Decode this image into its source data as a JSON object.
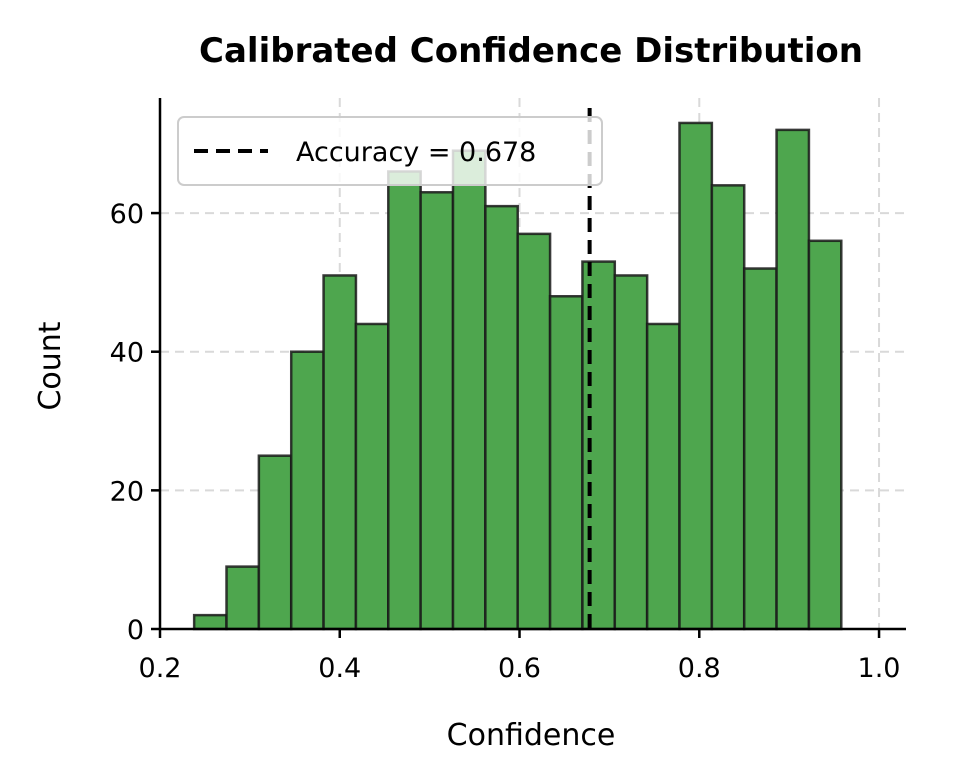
{
  "chart_data": {
    "type": "bar",
    "title": "Calibrated Confidence Distribution",
    "xlabel": "Confidence",
    "ylabel": "Count",
    "xlim": [
      0.2,
      1.03
    ],
    "ylim": [
      0,
      76.6
    ],
    "xticks": [
      "0.2",
      "0.4",
      "0.6",
      "0.8",
      "1.0"
    ],
    "yticks": [
      "0",
      "20",
      "40",
      "60"
    ],
    "grid": true,
    "legend_position": "top-left",
    "bins": [
      [
        0.238,
        0.274
      ],
      [
        0.274,
        0.31
      ],
      [
        0.31,
        0.346
      ],
      [
        0.346,
        0.382
      ],
      [
        0.382,
        0.418
      ],
      [
        0.418,
        0.454
      ],
      [
        0.454,
        0.49
      ],
      [
        0.49,
        0.526
      ],
      [
        0.526,
        0.562
      ],
      [
        0.562,
        0.598
      ],
      [
        0.598,
        0.634
      ],
      [
        0.634,
        0.67
      ],
      [
        0.67,
        0.706
      ],
      [
        0.706,
        0.742
      ],
      [
        0.742,
        0.778
      ],
      [
        0.778,
        0.814
      ],
      [
        0.814,
        0.85
      ],
      [
        0.85,
        0.886
      ],
      [
        0.886,
        0.922
      ],
      [
        0.922,
        0.958
      ],
      [
        0.958,
        0.994
      ]
    ],
    "values": [
      2,
      9,
      25,
      40,
      51,
      44,
      66,
      63,
      69,
      61,
      57,
      48,
      53,
      51,
      44,
      73,
      64,
      52,
      72,
      56,
      0
    ],
    "accuracy_line": {
      "label": "Accuracy = 0.678",
      "x": 0.678
    },
    "colors": {
      "bar_fill": "#4ea64e",
      "bar_edge": "#1a1a1a",
      "accuracy_line": "#000000",
      "grid": "#d9d9d9"
    }
  }
}
